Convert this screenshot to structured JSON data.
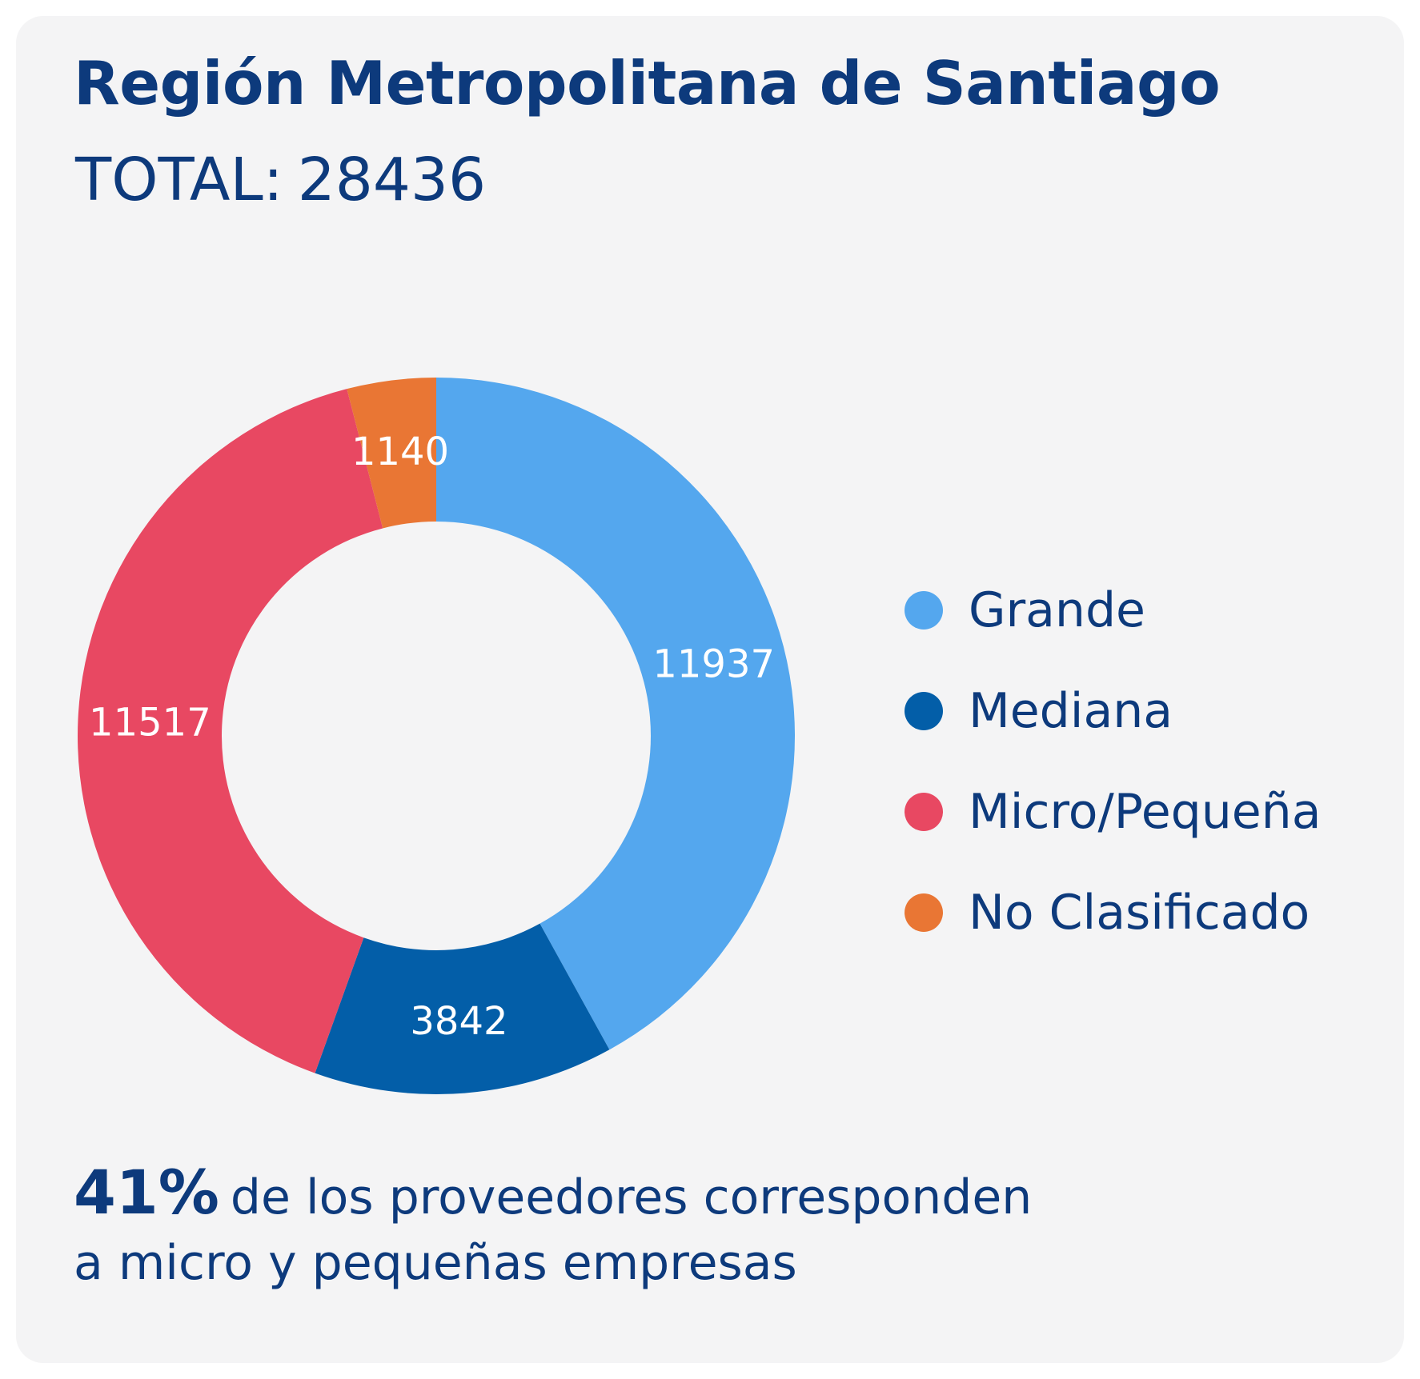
{
  "title": "Región Metropolitana de Santiago",
  "total": {
    "label": "TOTAL:",
    "value": "28436"
  },
  "chart_data": {
    "type": "pie",
    "variant": "donut",
    "categories": [
      "Grande",
      "Mediana",
      "Micro/Pequeña",
      "No Clasificado"
    ],
    "values": [
      11937,
      3842,
      11517,
      1140
    ],
    "value_labels": [
      "11937",
      "3842",
      "11517",
      "1140"
    ],
    "colors": [
      "#54a7ee",
      "#035ea8",
      "#e84862",
      "#e97634"
    ],
    "legend_position": "right"
  },
  "footer": {
    "highlight": "41%",
    "line1": "de los proveedores corresponden",
    "line2": "a micro y pequeñas empresas"
  }
}
